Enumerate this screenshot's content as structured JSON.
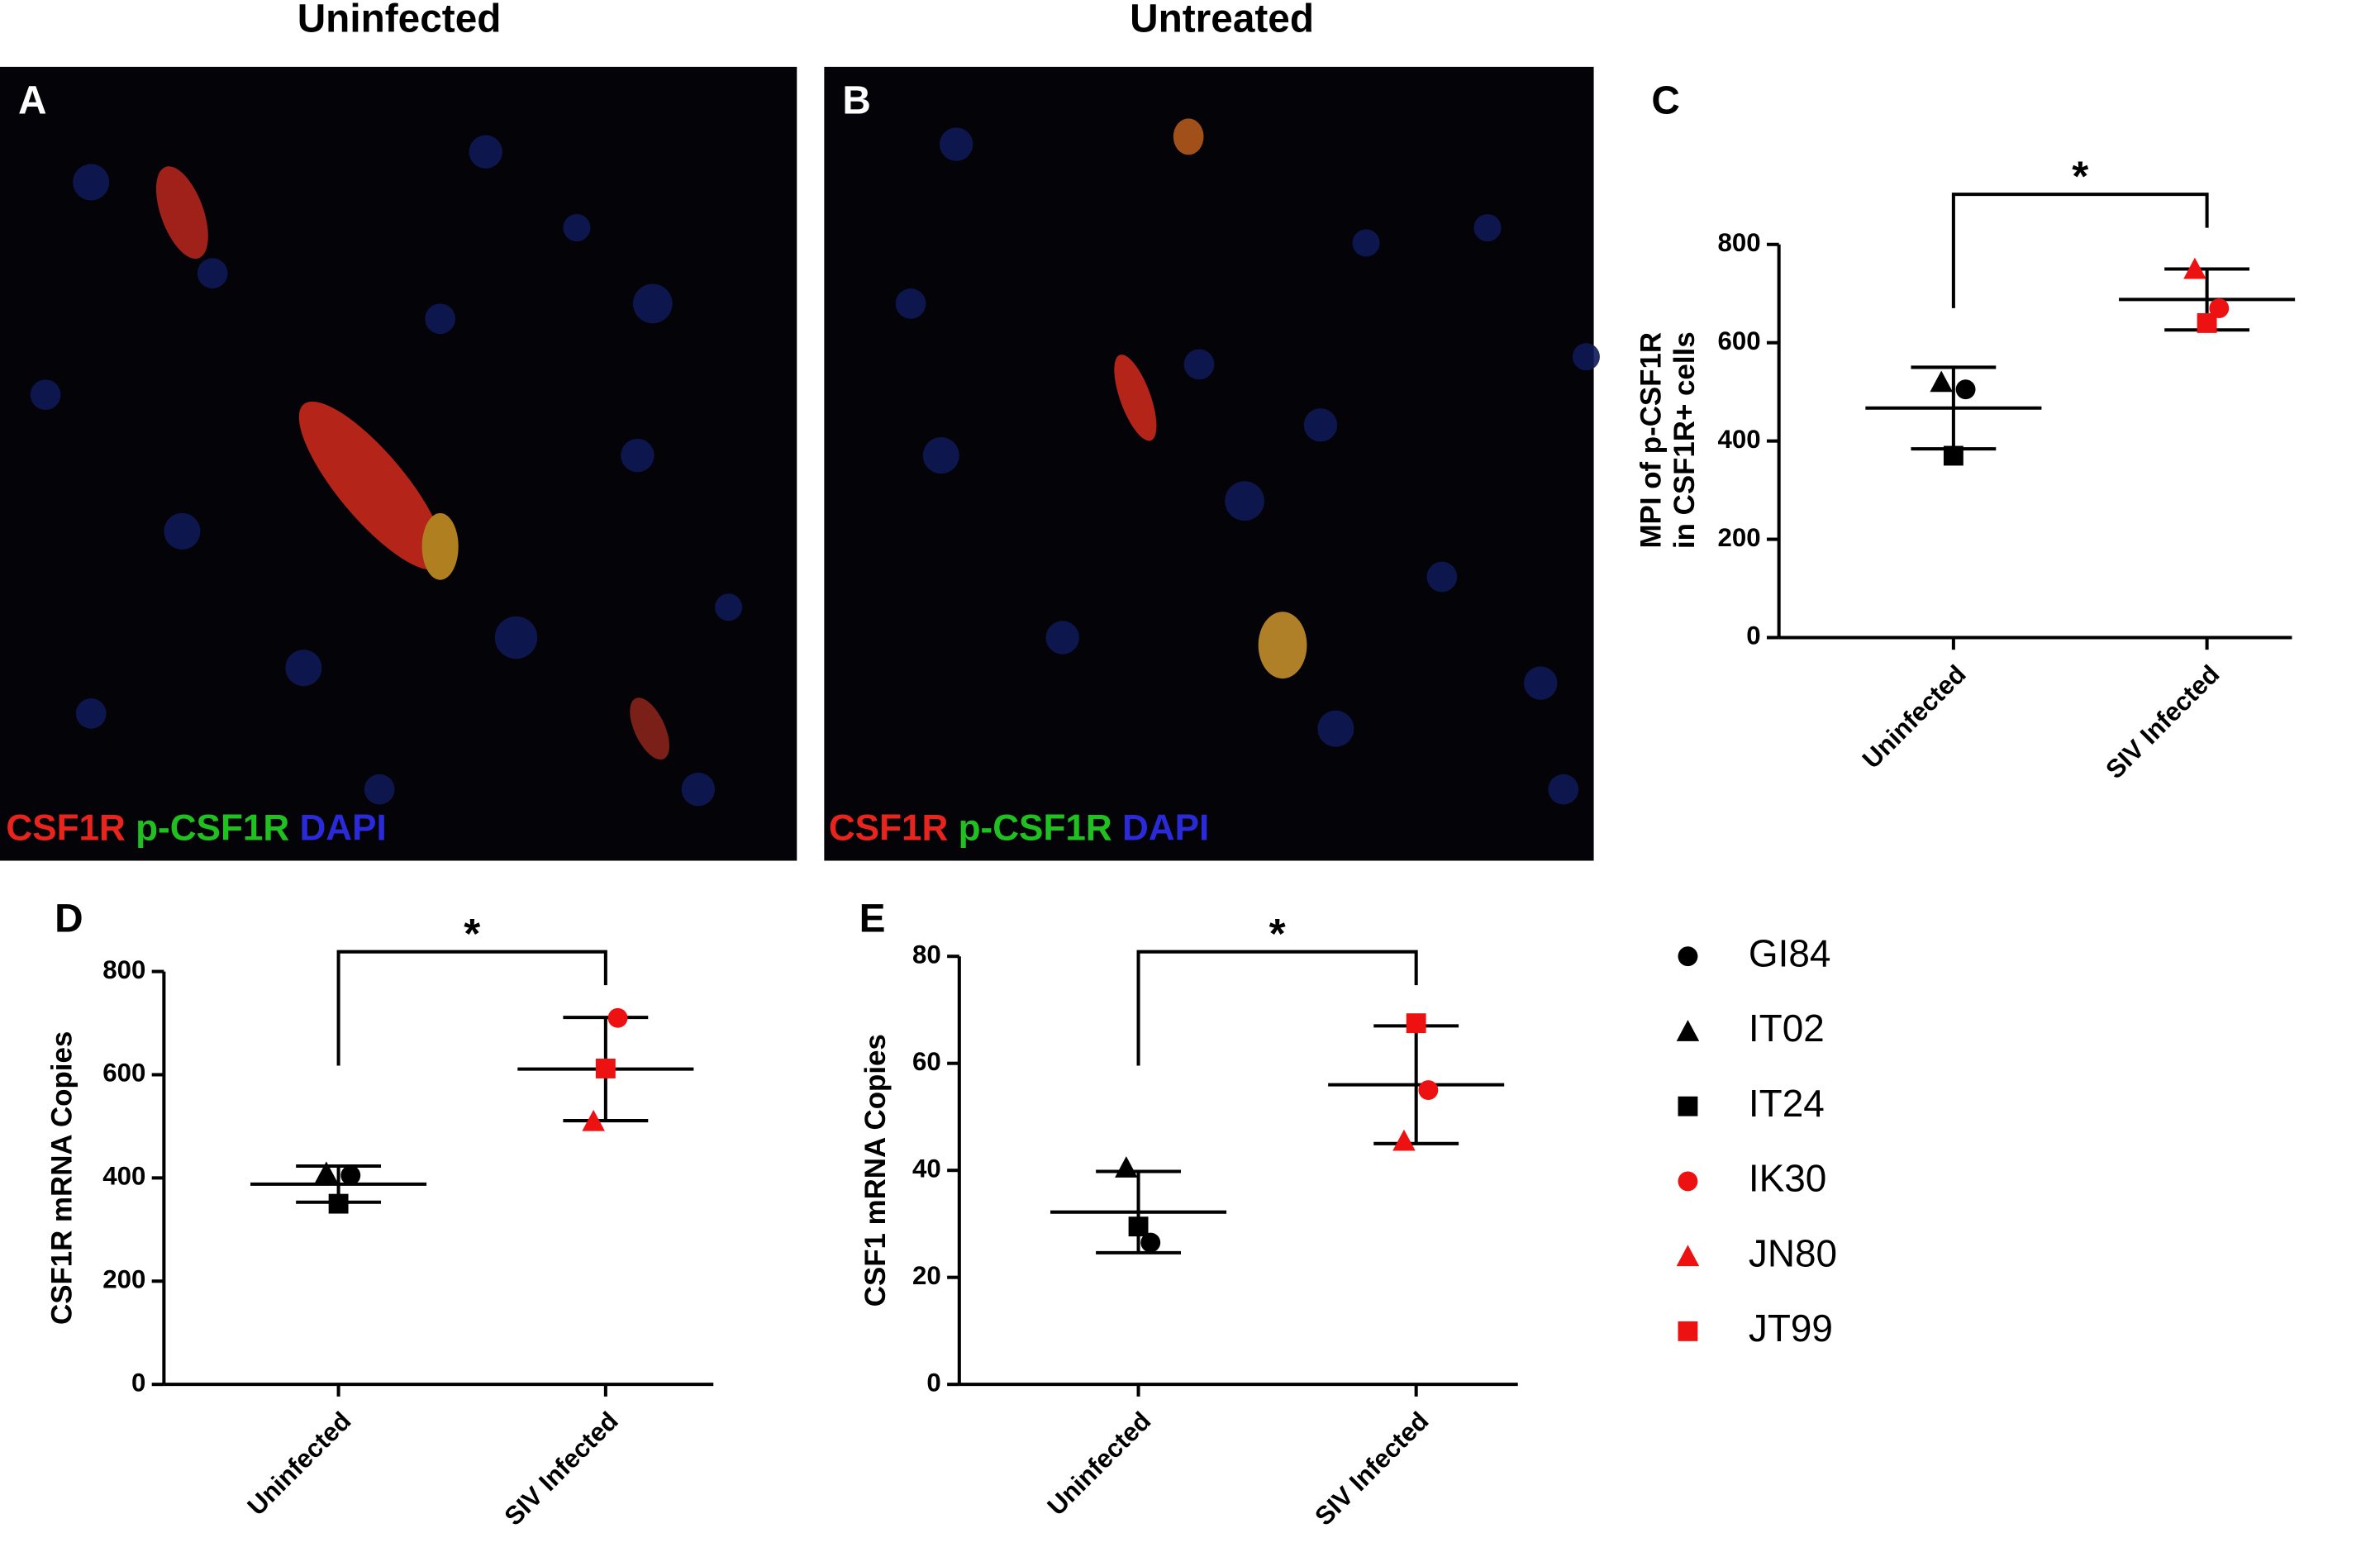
{
  "images": [
    {
      "panel": "A",
      "title": "Uninfected",
      "stain": [
        "CSF1R",
        "p-CSF1R",
        "DAPI"
      ]
    },
    {
      "panel": "B",
      "title": "Untreated",
      "stain": [
        "CSF1R",
        "p-CSF1R",
        "DAPI"
      ]
    }
  ],
  "chart_data": [
    {
      "type": "scatter",
      "panel": "C",
      "ylabel": [
        "MPI of p-CSF1R",
        "in CSF1R+ cells"
      ],
      "categories": [
        "Uninfected",
        "SIV Infected"
      ],
      "ylim": [
        0,
        800
      ],
      "yticks": [
        0,
        200,
        400,
        600,
        800
      ],
      "mean": [
        467,
        688
      ],
      "sd": [
        83,
        62
      ],
      "annotation": "*",
      "series": [
        {
          "name": "GI84",
          "color": "#000000",
          "marker": "circle",
          "values": [
            505,
            null
          ]
        },
        {
          "name": "IT02",
          "color": "#000000",
          "marker": "triangle",
          "values": [
            520,
            null
          ]
        },
        {
          "name": "IT24",
          "color": "#000000",
          "marker": "square",
          "values": [
            370,
            null
          ]
        },
        {
          "name": "IK30",
          "color": "#ee1111",
          "marker": "circle",
          "values": [
            null,
            670
          ]
        },
        {
          "name": "JN80",
          "color": "#ee1111",
          "marker": "triangle",
          "values": [
            null,
            750
          ]
        },
        {
          "name": "JT99",
          "color": "#ee1111",
          "marker": "square",
          "values": [
            null,
            640
          ]
        }
      ]
    },
    {
      "type": "scatter",
      "panel": "D",
      "ylabel": [
        "CSF1R mRNA Copies"
      ],
      "categories": [
        "Uninfected",
        "SIV Infected"
      ],
      "ylim": [
        0,
        800
      ],
      "yticks": [
        0,
        200,
        400,
        600,
        800
      ],
      "mean": [
        388,
        611
      ],
      "sd": [
        35,
        100
      ],
      "annotation": "*",
      "series": [
        {
          "name": "GI84",
          "color": "#000000",
          "marker": "circle",
          "values": [
            405,
            null
          ]
        },
        {
          "name": "IT02",
          "color": "#000000",
          "marker": "triangle",
          "values": [
            410,
            null
          ]
        },
        {
          "name": "IT24",
          "color": "#000000",
          "marker": "square",
          "values": [
            350,
            null
          ]
        },
        {
          "name": "IK30",
          "color": "#ee1111",
          "marker": "circle",
          "values": [
            null,
            710
          ]
        },
        {
          "name": "JN80",
          "color": "#ee1111",
          "marker": "triangle",
          "values": [
            null,
            510
          ]
        },
        {
          "name": "JT99",
          "color": "#ee1111",
          "marker": "square",
          "values": [
            null,
            612
          ]
        }
      ]
    },
    {
      "type": "scatter",
      "panel": "E",
      "ylabel": [
        "CSF1 mRNA Copies"
      ],
      "categories": [
        "Uninfected",
        "SIV Infected"
      ],
      "ylim": [
        0,
        80
      ],
      "yticks": [
        0,
        20,
        40,
        60,
        80
      ],
      "mean": [
        32.2,
        56
      ],
      "sd": [
        7.6,
        11
      ],
      "annotation": "*",
      "series": [
        {
          "name": "GI84",
          "color": "#000000",
          "marker": "circle",
          "values": [
            26.5,
            null
          ]
        },
        {
          "name": "IT02",
          "color": "#000000",
          "marker": "triangle",
          "values": [
            40.5,
            null
          ]
        },
        {
          "name": "IT24",
          "color": "#000000",
          "marker": "square",
          "values": [
            29.5,
            null
          ]
        },
        {
          "name": "IK30",
          "color": "#ee1111",
          "marker": "circle",
          "values": [
            null,
            55
          ]
        },
        {
          "name": "JN80",
          "color": "#ee1111",
          "marker": "triangle",
          "values": [
            null,
            45.5
          ]
        },
        {
          "name": "JT99",
          "color": "#ee1111",
          "marker": "square",
          "values": [
            null,
            67.5
          ]
        }
      ]
    }
  ]
}
